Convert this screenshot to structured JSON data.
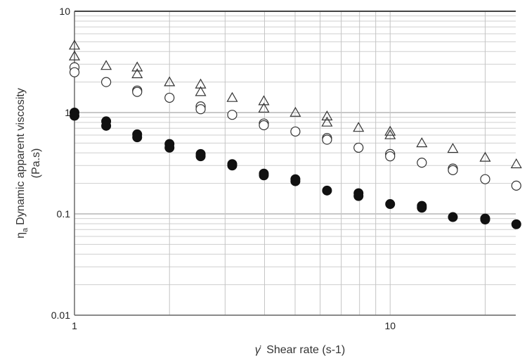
{
  "chart_data": {
    "type": "scatter",
    "xscale": "log",
    "yscale": "log",
    "xlim": [
      1,
      25
    ],
    "ylim": [
      0.01,
      10
    ],
    "grid": true,
    "xlabel_symbol": "γ̇",
    "xlabel": "Shear rate (s-1)",
    "ylabel_symbol": "η",
    "ylabel_subscript": "a",
    "ylabel": "Dynamic apparent viscosity",
    "ylabel_unit": "(Pa.s)",
    "x_tick_labels": [
      {
        "value": 1,
        "label": "1"
      },
      {
        "value": 10,
        "label": "10"
      }
    ],
    "y_tick_labels": [
      {
        "value": 0.01,
        "label": "0.01"
      },
      {
        "value": 0.1,
        "label": "0.1"
      },
      {
        "value": 1,
        "label": "1"
      },
      {
        "value": 10,
        "label": "10"
      }
    ],
    "series": [
      {
        "marker": "triangle-open",
        "color": "#333333",
        "points": [
          [
            1.0,
            4.6
          ],
          [
            1.0,
            3.6
          ],
          [
            1.26,
            2.9
          ],
          [
            1.58,
            2.8
          ],
          [
            1.58,
            2.4
          ],
          [
            2.0,
            2.0
          ],
          [
            2.51,
            1.9
          ],
          [
            2.51,
            1.6
          ],
          [
            3.16,
            1.4
          ],
          [
            3.98,
            1.3
          ],
          [
            3.98,
            1.1
          ],
          [
            5.01,
            1.0
          ],
          [
            6.31,
            0.92
          ],
          [
            6.31,
            0.8
          ],
          [
            7.94,
            0.71
          ],
          [
            10.0,
            0.65
          ],
          [
            10.0,
            0.6
          ],
          [
            12.6,
            0.5
          ],
          [
            15.8,
            0.44
          ],
          [
            20.0,
            0.36
          ],
          [
            25.1,
            0.31
          ]
        ]
      },
      {
        "marker": "circle-open",
        "color": "#333333",
        "points": [
          [
            1.0,
            2.8
          ],
          [
            1.0,
            2.5
          ],
          [
            1.26,
            2.0
          ],
          [
            1.58,
            1.65
          ],
          [
            1.58,
            1.6
          ],
          [
            2.0,
            1.4
          ],
          [
            2.51,
            1.15
          ],
          [
            2.51,
            1.08
          ],
          [
            3.16,
            0.95
          ],
          [
            3.98,
            0.78
          ],
          [
            3.98,
            0.75
          ],
          [
            5.01,
            0.65
          ],
          [
            6.31,
            0.56
          ],
          [
            6.31,
            0.54
          ],
          [
            7.94,
            0.45
          ],
          [
            10.0,
            0.39
          ],
          [
            10.0,
            0.37
          ],
          [
            12.6,
            0.32
          ],
          [
            15.8,
            0.28
          ],
          [
            15.8,
            0.27
          ],
          [
            20.0,
            0.22
          ],
          [
            25.1,
            0.19
          ]
        ]
      },
      {
        "marker": "circle-filled",
        "color": "#111111",
        "points": [
          [
            1.0,
            1.0
          ],
          [
            1.0,
            0.93
          ],
          [
            1.26,
            0.82
          ],
          [
            1.26,
            0.74
          ],
          [
            1.58,
            0.61
          ],
          [
            1.58,
            0.57
          ],
          [
            2.0,
            0.49
          ],
          [
            2.0,
            0.45
          ],
          [
            2.51,
            0.39
          ],
          [
            2.51,
            0.37
          ],
          [
            3.16,
            0.31
          ],
          [
            3.16,
            0.3
          ],
          [
            3.98,
            0.25
          ],
          [
            3.98,
            0.24
          ],
          [
            5.01,
            0.22
          ],
          [
            5.01,
            0.21
          ],
          [
            6.31,
            0.17
          ],
          [
            7.94,
            0.16
          ],
          [
            7.94,
            0.15
          ],
          [
            10.0,
            0.125
          ],
          [
            12.6,
            0.12
          ],
          [
            12.6,
            0.115
          ],
          [
            15.8,
            0.093
          ],
          [
            20.0,
            0.09
          ],
          [
            20.0,
            0.088
          ],
          [
            25.1,
            0.079
          ]
        ]
      }
    ]
  }
}
